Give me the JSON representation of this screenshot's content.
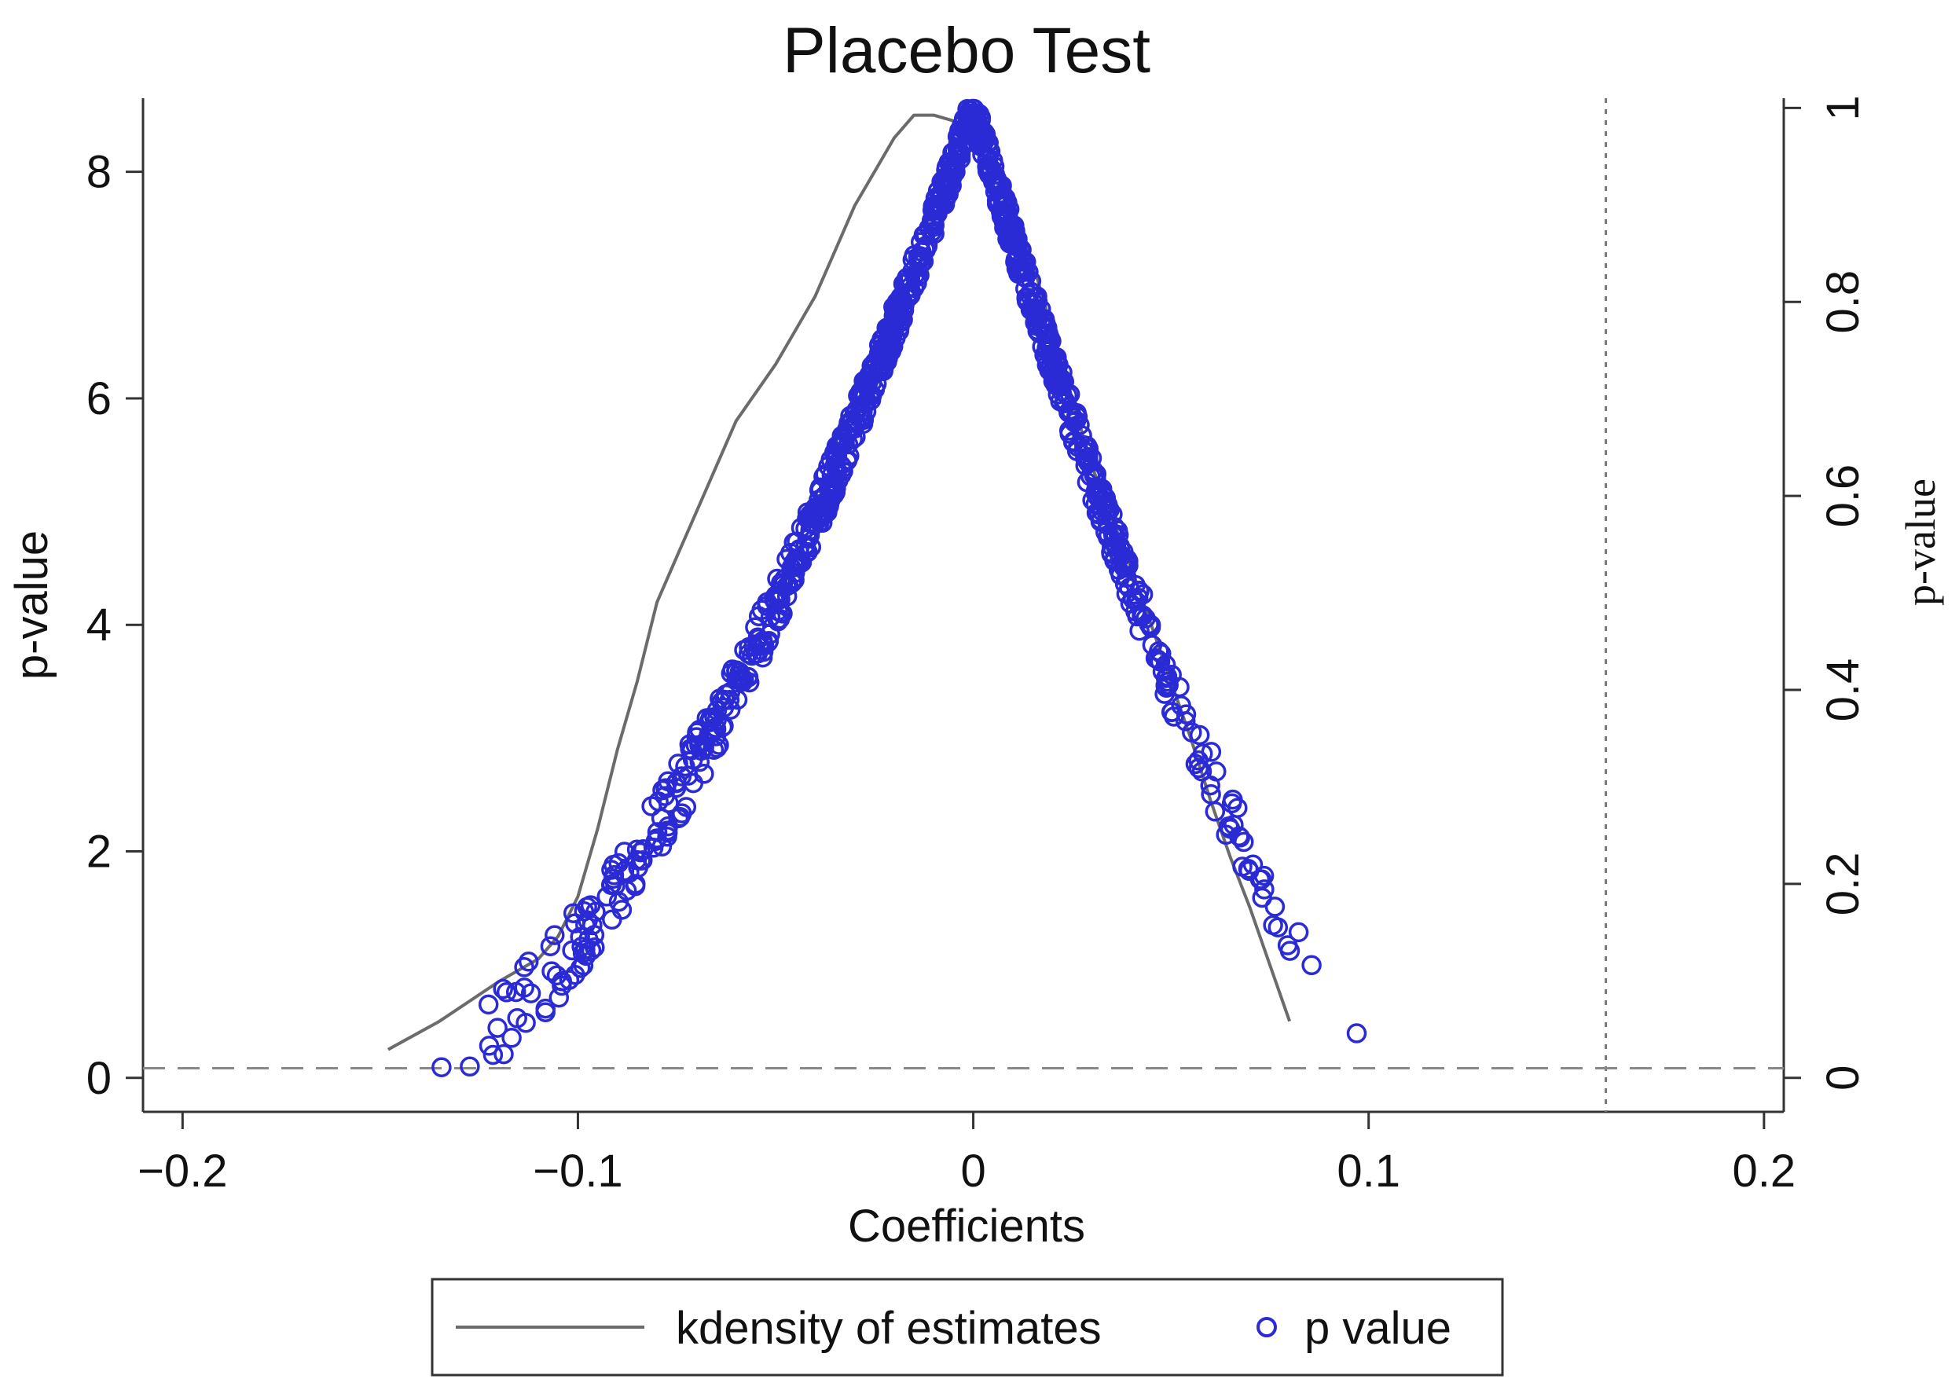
{
  "chart_data": {
    "type": "scatter",
    "title": "Placebo Test",
    "xlabel": "Coefficients",
    "ylabel_left": "p-value",
    "ylabel_right": "p-value",
    "xlim": [
      -0.21,
      0.205
    ],
    "ylim_left": [
      -0.3,
      8.65
    ],
    "ylim_right": [
      -0.035,
      1.01
    ],
    "x_ticks": [
      -0.2,
      -0.1,
      0,
      0.1,
      0.2
    ],
    "x_tick_labels": [
      "−0.2",
      "−0.1",
      "0",
      "0.1",
      "0.2"
    ],
    "y_left_ticks": [
      0,
      2,
      4,
      6,
      8
    ],
    "y_left_tick_labels": [
      "0",
      "2",
      "4",
      "6",
      "8"
    ],
    "y_right_ticks": [
      0,
      0.2,
      0.4,
      0.6,
      0.8,
      1
    ],
    "y_right_tick_labels": [
      "0",
      "0.2",
      "0.4",
      "0.6",
      "0.8",
      "1"
    ],
    "reference_lines": {
      "vertical_x": 0.16,
      "horizontal_p": 0.01
    },
    "legend": {
      "placement": "bottom",
      "entries": [
        "kdensity of estimates",
        "p value"
      ]
    },
    "series": [
      {
        "name": "kdensity of estimates",
        "kind": "line",
        "axis": "left",
        "color": "#6b6b6b",
        "x": [
          -0.148,
          -0.135,
          -0.12,
          -0.11,
          -0.105,
          -0.1,
          -0.095,
          -0.09,
          -0.085,
          -0.08,
          -0.075,
          -0.07,
          -0.06,
          -0.05,
          -0.045,
          -0.04,
          -0.035,
          -0.03,
          -0.025,
          -0.02,
          -0.015,
          -0.01,
          -0.005,
          0,
          0.005,
          0.01,
          0.015,
          0.02,
          0.025,
          0.03,
          0.035,
          0.04,
          0.045,
          0.05,
          0.055,
          0.06,
          0.065,
          0.07,
          0.075,
          0.08
        ],
        "y": [
          0.25,
          0.5,
          0.85,
          1.05,
          1.25,
          1.6,
          2.2,
          2.9,
          3.5,
          4.2,
          4.6,
          5.0,
          5.8,
          6.3,
          6.6,
          6.9,
          7.3,
          7.7,
          8.0,
          8.3,
          8.5,
          8.5,
          8.45,
          8.4,
          8.1,
          7.7,
          7.2,
          6.6,
          6.0,
          5.4,
          4.95,
          4.5,
          4.0,
          3.5,
          3.0,
          2.45,
          1.95,
          1.5,
          1.0,
          0.5
        ]
      },
      {
        "name": "p value",
        "kind": "scatter",
        "axis": "right",
        "color": "#2b2bd6",
        "peak": [
          0.0,
          1.0
        ],
        "left_edge": [
          -0.148,
          0.003
        ],
        "right_edge": [
          0.11,
          0.022
        ],
        "n_points": 1000
      }
    ]
  }
}
